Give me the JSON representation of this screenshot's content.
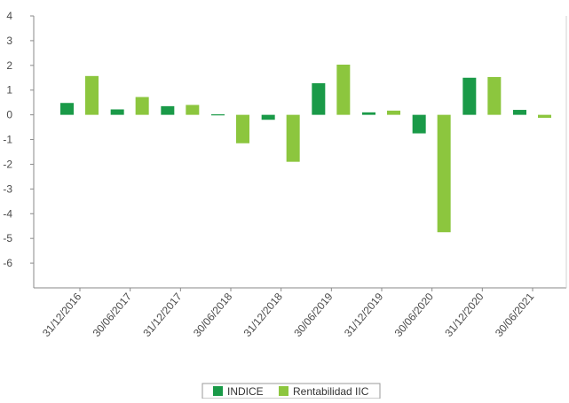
{
  "chart_data": {
    "type": "bar",
    "title": "",
    "xlabel": "",
    "ylabel": "",
    "categories": [
      "31/12/2016",
      "30/06/2017",
      "31/12/2017",
      "30/06/2018",
      "31/12/2018",
      "30/06/2019",
      "31/12/2019",
      "30/06/2020",
      "31/12/2020",
      "30/06/2021"
    ],
    "series": [
      {
        "name": "INDICE",
        "color": "#1a9a48",
        "values": [
          0.48,
          0.22,
          0.35,
          0.02,
          -0.2,
          1.28,
          0.1,
          -0.75,
          1.5,
          0.2
        ]
      },
      {
        "name": "Rentabilidad IIC",
        "color": "#8cc63e",
        "values": [
          1.57,
          0.72,
          0.4,
          -1.15,
          -1.9,
          2.03,
          0.17,
          -4.75,
          1.53,
          -0.12
        ]
      }
    ],
    "ylim": [
      -7,
      4
    ],
    "yticks": [
      4,
      3,
      2,
      1,
      0,
      -1,
      -2,
      -3,
      -4,
      -5,
      -6
    ],
    "grid": false,
    "legend_position": "bottom"
  }
}
